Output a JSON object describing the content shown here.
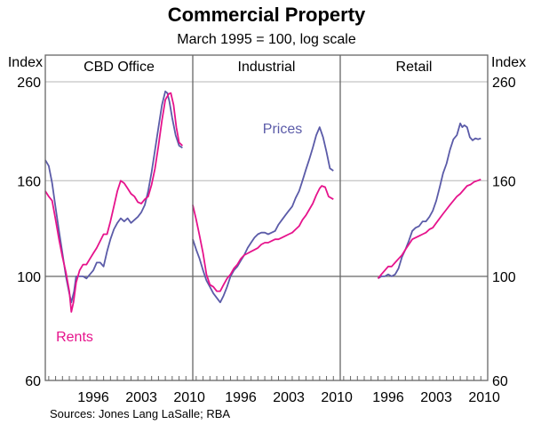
{
  "chart_data": {
    "type": "line",
    "title": "Commercial Property",
    "subtitle": "March 1995 = 100, log scale",
    "ylabel_left": "Index",
    "ylabel_right": "Index",
    "yscale": "log",
    "ylim": [
      60,
      260
    ],
    "yticks": [
      60,
      100,
      160,
      260
    ],
    "gridlines": [
      160,
      260
    ],
    "reference_line": 100,
    "xlim": [
      1989.5,
      2011
    ],
    "xticklabels": [
      "1996",
      "2003",
      "2010"
    ],
    "source": "Sources: Jones Lang LaSalle; RBA",
    "colors": {
      "prices": "#5b5ba8",
      "rents": "#e6138c"
    },
    "annotations": [
      {
        "panel": 0,
        "text": "Rents",
        "series": "Rents"
      },
      {
        "panel": 1,
        "text": "Prices",
        "series": "Prices"
      }
    ],
    "panels": [
      {
        "title": "CBD Office",
        "series": [
          {
            "name": "Prices",
            "x": [
              1989.5,
              1990.0,
              1990.5,
              1991.0,
              1991.5,
              1992.0,
              1992.5,
              1993.0,
              1993.3,
              1993.7,
              1994.0,
              1994.5,
              1995.0,
              1995.5,
              1996.0,
              1996.5,
              1997.0,
              1997.5,
              1998.0,
              1998.5,
              1999.0,
              1999.5,
              2000.0,
              2000.5,
              2001.0,
              2001.5,
              2002.0,
              2002.5,
              2003.0,
              2003.5,
              2004.0,
              2004.5,
              2005.0,
              2005.5,
              2006.0,
              2006.5,
              2007.0,
              2007.3,
              2007.6,
              2008.0,
              2008.5,
              2009.0,
              2009.5
            ],
            "y": [
              177,
              172,
              158,
              140,
              125,
              112,
              100,
              92,
              88,
              93,
              100,
              100,
              100,
              99,
              101,
              103,
              107,
              107,
              105,
              113,
              120,
              126,
              130,
              133,
              131,
              133,
              130,
              132,
              134,
              137,
              142,
              152,
              167,
              186,
              208,
              232,
              248,
              246,
              236,
              218,
              200,
              190,
              188
            ]
          },
          {
            "name": "Rents",
            "x": [
              1989.5,
              1990.0,
              1990.5,
              1991.0,
              1991.5,
              1992.0,
              1992.5,
              1993.0,
              1993.3,
              1993.6,
              1994.0,
              1994.5,
              1995.0,
              1995.5,
              1996.0,
              1996.5,
              1997.0,
              1997.5,
              1998.0,
              1998.5,
              1999.0,
              1999.5,
              2000.0,
              2000.5,
              2001.0,
              2001.5,
              2002.0,
              2002.5,
              2003.0,
              2003.5,
              2004.0,
              2004.5,
              2005.0,
              2005.5,
              2006.0,
              2006.5,
              2007.0,
              2007.5,
              2007.8,
              2008.2,
              2008.6,
              2009.0,
              2009.5
            ],
            "y": [
              152,
              148,
              145,
              132,
              120,
              110,
              102,
              93,
              84,
              88,
              97,
              103,
              106,
              106,
              109,
              112,
              115,
              119,
              123,
              123,
              131,
              141,
              152,
              160,
              158,
              154,
              150,
              148,
              144,
              143,
              146,
              148,
              157,
              170,
              190,
              215,
              238,
              245,
              246,
              232,
              208,
              193,
              190
            ]
          }
        ]
      },
      {
        "title": "Industrial",
        "series": [
          {
            "name": "Prices",
            "x": [
              1989.5,
              1990.0,
              1990.5,
              1991.0,
              1991.5,
              1992.0,
              1992.5,
              1993.0,
              1993.5,
              1994.0,
              1994.5,
              1995.0,
              1995.5,
              1996.0,
              1996.5,
              1997.0,
              1997.5,
              1998.0,
              1998.5,
              1999.0,
              1999.5,
              2000.0,
              2000.5,
              2001.0,
              2001.5,
              2002.0,
              2002.5,
              2003.0,
              2003.5,
              2004.0,
              2004.5,
              2005.0,
              2005.5,
              2006.0,
              2006.5,
              2007.0,
              2007.5,
              2008.0,
              2008.5,
              2009.0,
              2009.5,
              2010.0
            ],
            "y": [
              120,
              114,
              109,
              103,
              98,
              95,
              92,
              90,
              88,
              91,
              95,
              100,
              103,
              105,
              108,
              111,
              115,
              118,
              121,
              123,
              124,
              124,
              123,
              124,
              125,
              129,
              132,
              135,
              138,
              141,
              147,
              152,
              160,
              169,
              178,
              188,
              200,
              208,
              198,
              184,
              170,
              168
            ]
          },
          {
            "name": "Rents",
            "x": [
              1989.5,
              1990.0,
              1990.5,
              1991.0,
              1991.5,
              1992.0,
              1992.5,
              1993.0,
              1993.5,
              1994.0,
              1994.5,
              1995.0,
              1995.5,
              1996.0,
              1996.5,
              1997.0,
              1997.5,
              1998.0,
              1998.5,
              1999.0,
              1999.5,
              2000.0,
              2000.5,
              2001.0,
              2001.5,
              2002.0,
              2002.5,
              2003.0,
              2003.5,
              2004.0,
              2004.5,
              2005.0,
              2005.5,
              2006.0,
              2006.5,
              2007.0,
              2007.5,
              2008.0,
              2008.3,
              2008.8,
              2009.3,
              2010.0
            ],
            "y": [
              142,
              132,
              122,
              112,
              101,
              96,
              95,
              93,
              93,
              96,
              99,
              101,
              104,
              106,
              109,
              111,
              112,
              113,
              114,
              115,
              117,
              118,
              118,
              119,
              120,
              120,
              121,
              122,
              123,
              124,
              126,
              128,
              132,
              135,
              139,
              143,
              149,
              154,
              156,
              155,
              148,
              146
            ]
          }
        ]
      },
      {
        "title": "Retail",
        "series": [
          {
            "name": "Prices",
            "x": [
              1995.0,
              1995.5,
              1996.0,
              1996.5,
              1997.0,
              1997.5,
              1998.0,
              1998.5,
              1999.0,
              1999.5,
              2000.0,
              2000.5,
              2001.0,
              2001.5,
              2002.0,
              2002.5,
              2003.0,
              2003.5,
              2004.0,
              2004.5,
              2005.0,
              2005.5,
              2006.0,
              2006.5,
              2007.0,
              2007.3,
              2007.6,
              2008.0,
              2008.4,
              2008.8,
              2009.2,
              2009.6,
              2010.0
            ],
            "y": [
              99,
              100,
              100,
              101,
              100,
              101,
              104,
              110,
              114,
              119,
              125,
              127,
              128,
              131,
              131,
              134,
              138,
              145,
              155,
              166,
              174,
              186,
              196,
              200,
              212,
              208,
              210,
              208,
              198,
              195,
              197,
              196,
              197
            ]
          },
          {
            "name": "Rents",
            "x": [
              1995.0,
              1995.5,
              1996.0,
              1996.5,
              1997.0,
              1997.5,
              1998.0,
              1998.5,
              1999.0,
              1999.5,
              2000.0,
              2000.5,
              2001.0,
              2001.5,
              2002.0,
              2002.5,
              2003.0,
              2003.5,
              2004.0,
              2004.5,
              2005.0,
              2005.5,
              2006.0,
              2006.5,
              2007.0,
              2007.5,
              2008.0,
              2008.5,
              2009.0,
              2009.5,
              2010.0
            ],
            "y": [
              99,
              101,
              103,
              105,
              105,
              107,
              109,
              111,
              114,
              117,
              120,
              121,
              122,
              123,
              124,
              126,
              127,
              130,
              133,
              136,
              139,
              142,
              145,
              148,
              150,
              153,
              156,
              157,
              159,
              160,
              161
            ]
          }
        ]
      }
    ]
  }
}
